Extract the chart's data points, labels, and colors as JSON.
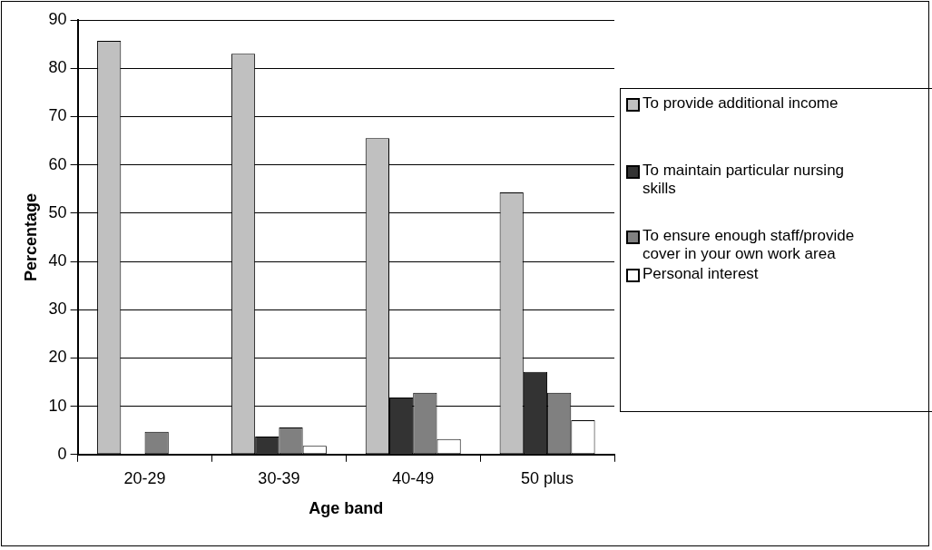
{
  "chart_data": {
    "type": "bar",
    "xlabel": "Age band",
    "ylabel": "Percentage",
    "categories": [
      "20-29",
      "30-39",
      "40-49",
      "50 plus"
    ],
    "series": [
      {
        "name": "To provide additional income",
        "color": "#c0c0c0",
        "values": [
          85.7,
          83,
          65.5,
          54.3
        ]
      },
      {
        "name": "To maintain particular nursing skills",
        "color": "#333333",
        "values": [
          0,
          3.7,
          11.8,
          17.1
        ]
      },
      {
        "name": "To ensure enough staff/provide cover in your own work area",
        "color": "#808080",
        "values": [
          4.7,
          5.6,
          12.8,
          12.8
        ]
      },
      {
        "name": "Personal interest",
        "color": "#ffffff",
        "values": [
          0,
          1.8,
          3.2,
          7.1
        ]
      }
    ],
    "ylim": [
      0,
      90
    ],
    "yticks": [
      0,
      10,
      20,
      30,
      40,
      50,
      60,
      70,
      80,
      90
    ],
    "grid": "y",
    "legend": "right"
  }
}
